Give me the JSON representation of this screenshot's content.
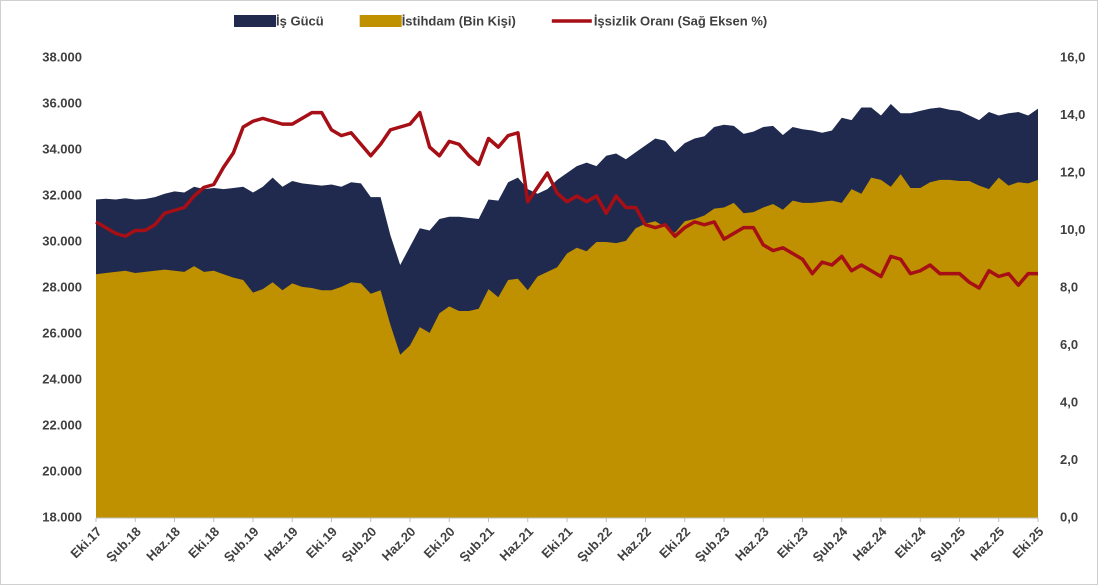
{
  "chart_data": {
    "type": "area",
    "categories": [
      "Eki.17",
      null,
      null,
      null,
      "Şub.18",
      null,
      null,
      null,
      "Haz.18",
      null,
      null,
      null,
      "Eki.18",
      null,
      null,
      null,
      "Şub.19",
      null,
      null,
      null,
      "Haz.19",
      null,
      null,
      null,
      "Eki.19",
      null,
      null,
      null,
      "Şub.20",
      null,
      null,
      null,
      "Haz.20",
      null,
      null,
      null,
      "Eki.20",
      null,
      null,
      null,
      "Şub.21",
      null,
      null,
      null,
      "Haz.21",
      null,
      null,
      null,
      "Eki.21",
      null,
      null,
      null,
      "Şub.22",
      null,
      null,
      null,
      "Haz.22",
      null,
      null,
      null,
      "Eki.22",
      null,
      null,
      null,
      "Şub.23",
      null,
      null,
      null,
      "Haz.23",
      null,
      null,
      null,
      "Eki.23",
      null,
      null,
      null,
      "Şub.24",
      null,
      null,
      null,
      "Haz.24",
      null,
      null,
      null,
      "Eki.24",
      null,
      null,
      null,
      "Şub.25",
      null,
      null,
      null,
      "Haz.25",
      null,
      null,
      null,
      "Eki.25"
    ],
    "series": [
      {
        "name": "İş Gücü",
        "type": "area",
        "color": "#1f2a4e",
        "values": [
          31850,
          31880,
          31850,
          31900,
          31850,
          31870,
          31950,
          32100,
          32200,
          32150,
          32400,
          32300,
          32350,
          32300,
          32350,
          32400,
          32150,
          32400,
          32800,
          32400,
          32650,
          32550,
          32500,
          32450,
          32500,
          32400,
          32600,
          32550,
          31950,
          31950,
          30300,
          29000,
          29800,
          30600,
          30500,
          31000,
          31100,
          31100,
          31050,
          31000,
          31850,
          31800,
          32600,
          32800,
          32300,
          32100,
          32300,
          32700,
          33000,
          33300,
          33450,
          33300,
          33750,
          33850,
          33600,
          33900,
          34200,
          34500,
          34400,
          33900,
          34300,
          34500,
          34600,
          35000,
          35100,
          35050,
          34700,
          34800,
          35000,
          35050,
          34650,
          35000,
          34900,
          34850,
          34750,
          34850,
          35400,
          35300,
          35850,
          35850,
          35500,
          36000,
          35600,
          35600,
          35700,
          35800,
          35850,
          35750,
          35700,
          35500,
          35300,
          35650,
          35500,
          35600,
          35650,
          35500,
          35800
        ]
      },
      {
        "name": "İstihdam (Bin Kişi)",
        "type": "area",
        "color": "#bf9000",
        "values": [
          28600,
          28650,
          28700,
          28750,
          28650,
          28700,
          28750,
          28800,
          28750,
          28700,
          28950,
          28700,
          28750,
          28600,
          28450,
          28350,
          27800,
          27950,
          28250,
          27900,
          28200,
          28050,
          28000,
          27900,
          27900,
          28050,
          28250,
          28200,
          27750,
          27900,
          26400,
          25100,
          25500,
          26300,
          26050,
          26900,
          27200,
          27000,
          27000,
          27100,
          27950,
          27600,
          28350,
          28400,
          27900,
          28500,
          28700,
          28900,
          29500,
          29750,
          29600,
          30000,
          30000,
          29950,
          30050,
          30600,
          30800,
          30900,
          30650,
          30400,
          30900,
          31000,
          31150,
          31450,
          31500,
          31700,
          31250,
          31300,
          31500,
          31650,
          31400,
          31800,
          31700,
          31700,
          31750,
          31800,
          31700,
          32300,
          32100,
          32800,
          32700,
          32400,
          32950,
          32350,
          32350,
          32600,
          32700,
          32700,
          32650,
          32650,
          32450,
          32300,
          32800,
          32450,
          32600,
          32550,
          32700
        ]
      },
      {
        "name": "İşsizlik Oranı (Sağ Eksen %)",
        "type": "line",
        "axis": "y2",
        "color": "#a50f15",
        "values": [
          10.3,
          10.1,
          9.9,
          9.8,
          10.0,
          10.0,
          10.2,
          10.6,
          10.7,
          10.8,
          11.2,
          11.5,
          11.6,
          12.2,
          12.7,
          13.6,
          13.8,
          13.9,
          13.8,
          13.7,
          13.7,
          13.9,
          14.1,
          14.1,
          13.5,
          13.3,
          13.4,
          13.0,
          12.6,
          13.0,
          13.5,
          13.6,
          13.7,
          14.1,
          12.9,
          12.6,
          13.1,
          13.0,
          12.6,
          12.3,
          13.2,
          12.9,
          13.3,
          13.4,
          11.0,
          11.5,
          12.0,
          11.3,
          11.0,
          11.2,
          11.0,
          11.2,
          10.6,
          11.2,
          10.8,
          10.8,
          10.2,
          10.1,
          10.2,
          9.8,
          10.1,
          10.3,
          10.2,
          10.3,
          9.7,
          9.9,
          10.1,
          10.1,
          9.5,
          9.3,
          9.4,
          9.2,
          9.0,
          8.5,
          8.9,
          8.8,
          9.1,
          8.6,
          8.8,
          8.6,
          8.4,
          9.1,
          9.0,
          8.5,
          8.6,
          8.8,
          8.5,
          8.5,
          8.5,
          8.2,
          8.0,
          8.6,
          8.4,
          8.5,
          8.1,
          8.5,
          8.5
        ]
      }
    ],
    "ylim": [
      18000,
      38000
    ],
    "yticks": [
      {
        "value": 18000,
        "label": "18.000"
      },
      {
        "value": 20000,
        "label": "20.000"
      },
      {
        "value": 22000,
        "label": "22.000"
      },
      {
        "value": 24000,
        "label": "24.000"
      },
      {
        "value": 26000,
        "label": "26.000"
      },
      {
        "value": 28000,
        "label": "28.000"
      },
      {
        "value": 30000,
        "label": "30.000"
      },
      {
        "value": 32000,
        "label": "32.000"
      },
      {
        "value": 34000,
        "label": "34.000"
      },
      {
        "value": 36000,
        "label": "36.000"
      },
      {
        "value": 38000,
        "label": "38.000"
      }
    ],
    "y2lim": [
      0,
      16
    ],
    "y2ticks": [
      {
        "value": 0,
        "label": "0,0"
      },
      {
        "value": 2,
        "label": "2,0"
      },
      {
        "value": 4,
        "label": "4,0"
      },
      {
        "value": 6,
        "label": "6,0"
      },
      {
        "value": 8,
        "label": "8,0"
      },
      {
        "value": 10,
        "label": "10,0"
      },
      {
        "value": 12,
        "label": "12,0"
      },
      {
        "value": 14,
        "label": "14,0"
      },
      {
        "value": 16,
        "label": "16,0"
      }
    ],
    "grid": false,
    "legend": "top"
  }
}
